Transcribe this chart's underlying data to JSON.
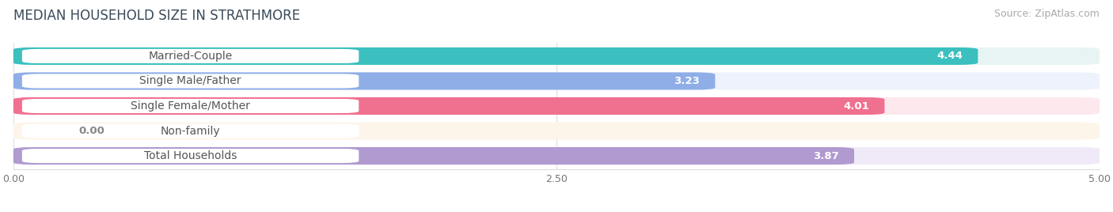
{
  "title": "MEDIAN HOUSEHOLD SIZE IN STRATHMORE",
  "source": "Source: ZipAtlas.com",
  "categories": [
    "Married-Couple",
    "Single Male/Father",
    "Single Female/Mother",
    "Non-family",
    "Total Households"
  ],
  "values": [
    4.44,
    3.23,
    4.01,
    0.0,
    3.87
  ],
  "bar_colors": [
    "#3bbfbf",
    "#8faee8",
    "#f07090",
    "#f5c998",
    "#b09ad0"
  ],
  "bar_bg_colors": [
    "#e8f4f4",
    "#eef2fc",
    "#fde8ee",
    "#fef5ea",
    "#f0eaf8"
  ],
  "label_bg_color": "#ffffff",
  "xlim": [
    0,
    5.0
  ],
  "xticks": [
    0.0,
    2.5,
    5.0
  ],
  "title_fontsize": 12,
  "label_fontsize": 10,
  "value_fontsize": 9.5,
  "source_fontsize": 9,
  "title_color": "#3a4a5a",
  "label_color": "#555555",
  "value_color": "#ffffff",
  "source_color": "#aaaaaa"
}
